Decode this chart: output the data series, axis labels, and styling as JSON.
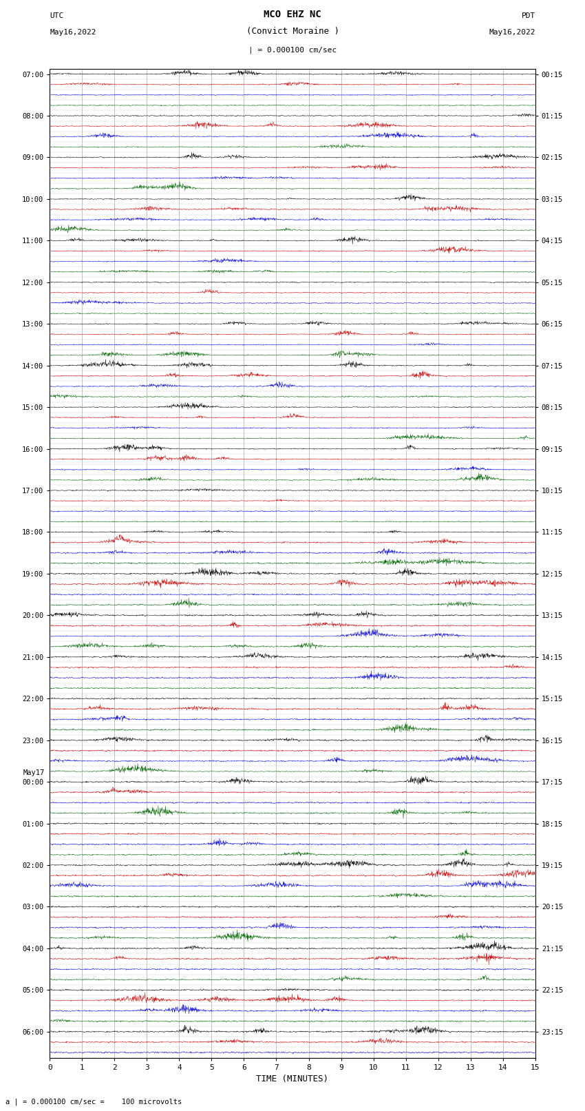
{
  "title_line1": "MCO EHZ NC",
  "title_line2": "(Convict Moraine )",
  "scale_label": "| = 0.000100 cm/sec",
  "bottom_label": "a | = 0.000100 cm/sec =    100 microvolts",
  "xlabel": "TIME (MINUTES)",
  "utc_label": "UTC",
  "utc_date": "May16,2022",
  "pdt_label": "PDT",
  "pdt_date": "May16,2022",
  "background_color": "#ffffff",
  "trace_colors": [
    "black",
    "#cc0000",
    "#0000dd",
    "#006600"
  ],
  "left_labels": [
    [
      "07:00",
      0
    ],
    [
      "08:00",
      4
    ],
    [
      "09:00",
      8
    ],
    [
      "10:00",
      12
    ],
    [
      "11:00",
      16
    ],
    [
      "12:00",
      20
    ],
    [
      "13:00",
      24
    ],
    [
      "14:00",
      28
    ],
    [
      "15:00",
      32
    ],
    [
      "16:00",
      36
    ],
    [
      "17:00",
      40
    ],
    [
      "18:00",
      44
    ],
    [
      "19:00",
      48
    ],
    [
      "20:00",
      52
    ],
    [
      "21:00",
      56
    ],
    [
      "22:00",
      60
    ],
    [
      "23:00",
      64
    ],
    [
      "May17",
      67
    ],
    [
      "00:00",
      68
    ],
    [
      "01:00",
      72
    ],
    [
      "02:00",
      76
    ],
    [
      "03:00",
      80
    ],
    [
      "04:00",
      84
    ],
    [
      "05:00",
      88
    ],
    [
      "06:00",
      92
    ]
  ],
  "right_labels": [
    [
      "00:15",
      0
    ],
    [
      "01:15",
      4
    ],
    [
      "02:15",
      8
    ],
    [
      "03:15",
      12
    ],
    [
      "04:15",
      16
    ],
    [
      "05:15",
      20
    ],
    [
      "06:15",
      24
    ],
    [
      "07:15",
      28
    ],
    [
      "08:15",
      32
    ],
    [
      "09:15",
      36
    ],
    [
      "10:15",
      40
    ],
    [
      "11:15",
      44
    ],
    [
      "12:15",
      48
    ],
    [
      "13:15",
      52
    ],
    [
      "14:15",
      56
    ],
    [
      "15:15",
      60
    ],
    [
      "16:15",
      64
    ],
    [
      "17:15",
      68
    ],
    [
      "18:15",
      72
    ],
    [
      "19:15",
      76
    ],
    [
      "20:15",
      80
    ],
    [
      "21:15",
      84
    ],
    [
      "22:15",
      88
    ],
    [
      "23:15",
      92
    ]
  ],
  "num_traces": 95,
  "xmin": 0,
  "xmax": 15,
  "xticks": [
    0,
    1,
    2,
    3,
    4,
    5,
    6,
    7,
    8,
    9,
    10,
    11,
    12,
    13,
    14,
    15
  ],
  "grid_color": "#aaaaaa",
  "grid_linewidth": 0.5
}
